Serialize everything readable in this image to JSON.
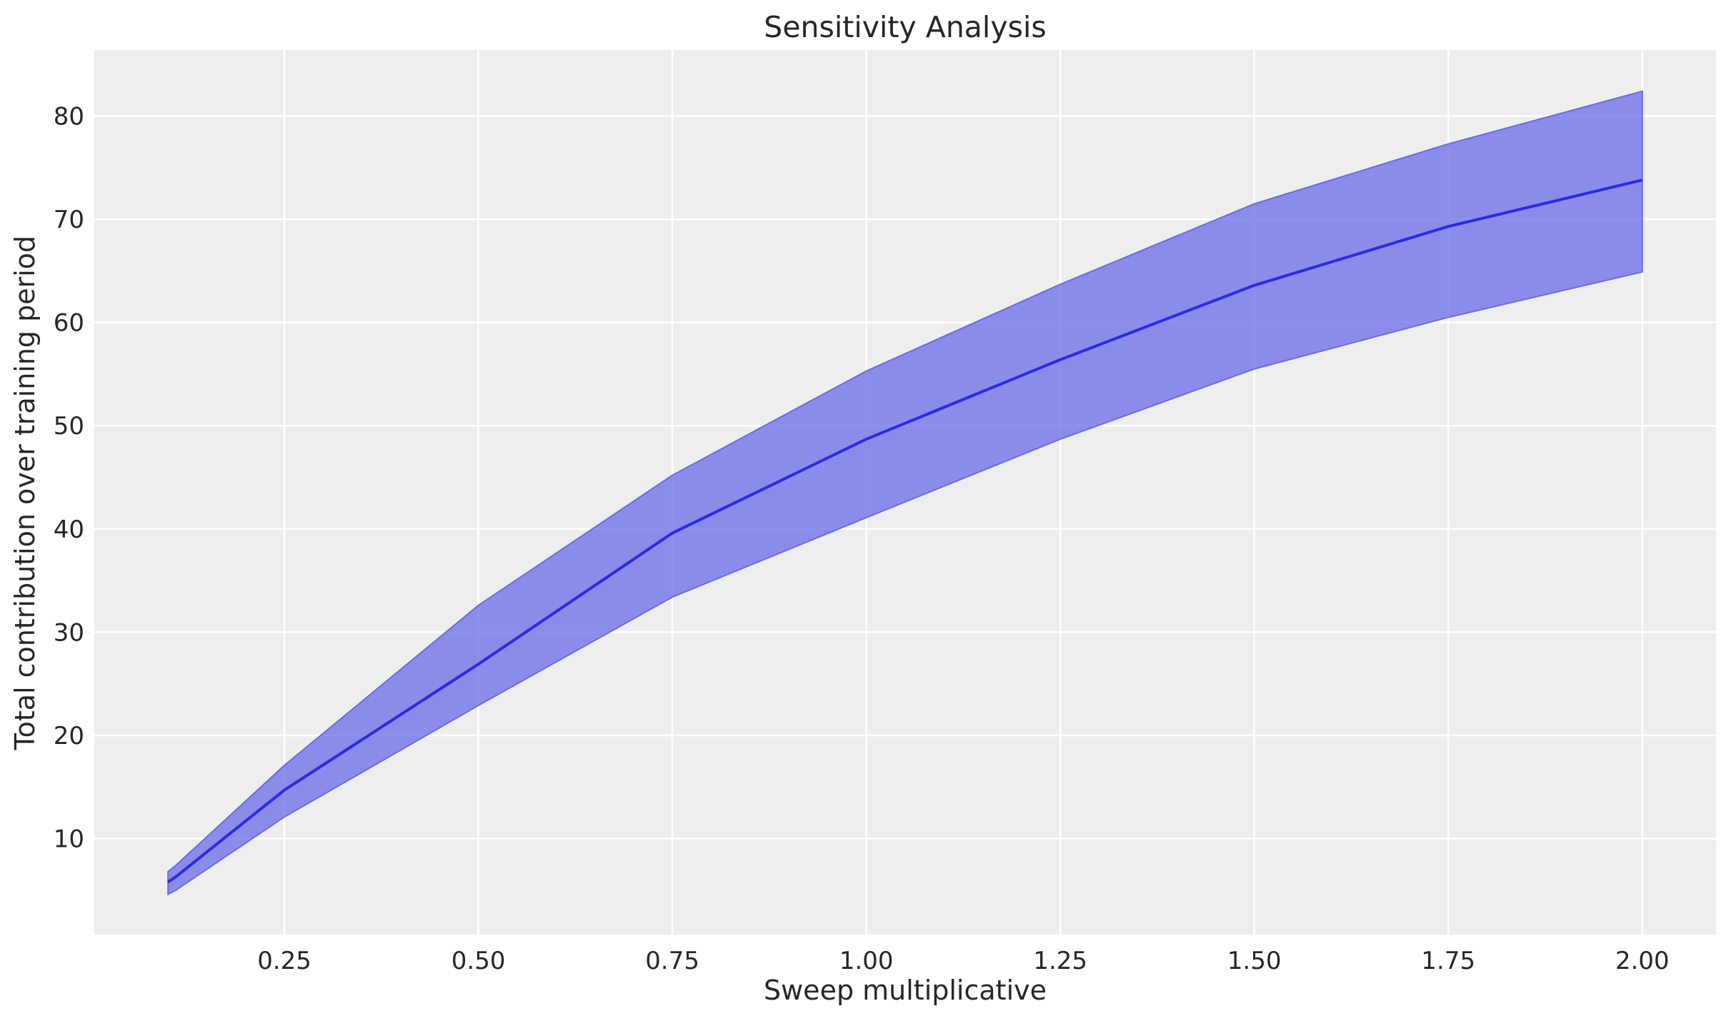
{
  "chart_data": {
    "type": "area",
    "title": "Sensitivity Analysis",
    "xlabel": "Sweep multiplicative",
    "ylabel": "Total contribution over training period",
    "xlim": [
      0.005,
      2.095
    ],
    "ylim": [
      0.7,
      86.4
    ],
    "grid": true,
    "xticks": [
      "0.25",
      "0.50",
      "0.75",
      "1.00",
      "1.25",
      "1.50",
      "1.75",
      "2.00"
    ],
    "xtick_values": [
      0.25,
      0.5,
      0.75,
      1.0,
      1.25,
      1.5,
      1.75,
      2.0
    ],
    "yticks": [
      "10",
      "20",
      "30",
      "40",
      "50",
      "60",
      "70",
      "80"
    ],
    "ytick_values": [
      10,
      20,
      30,
      40,
      50,
      60,
      70,
      80
    ],
    "x": [
      0.1,
      0.11,
      0.25,
      0.5,
      0.75,
      1.0,
      1.25,
      1.5,
      1.75,
      2.0
    ],
    "series": [
      {
        "role": "mean",
        "values": [
          5.8,
          6.3,
          14.7,
          26.9,
          39.6,
          48.7,
          56.4,
          63.6,
          69.3,
          73.8
        ]
      }
    ],
    "band": {
      "upper": [
        6.8,
        7.4,
        17.1,
        32.6,
        45.2,
        55.3,
        63.7,
        71.5,
        77.3,
        82.4
      ],
      "lower": [
        4.6,
        5.0,
        12.1,
        22.9,
        33.4,
        41.1,
        48.7,
        55.5,
        60.5,
        64.9
      ]
    },
    "colors": {
      "line": "#2a2ae8",
      "band": "#6a6ae8",
      "background": "#eeeeee",
      "grid": "#ffffff"
    }
  }
}
